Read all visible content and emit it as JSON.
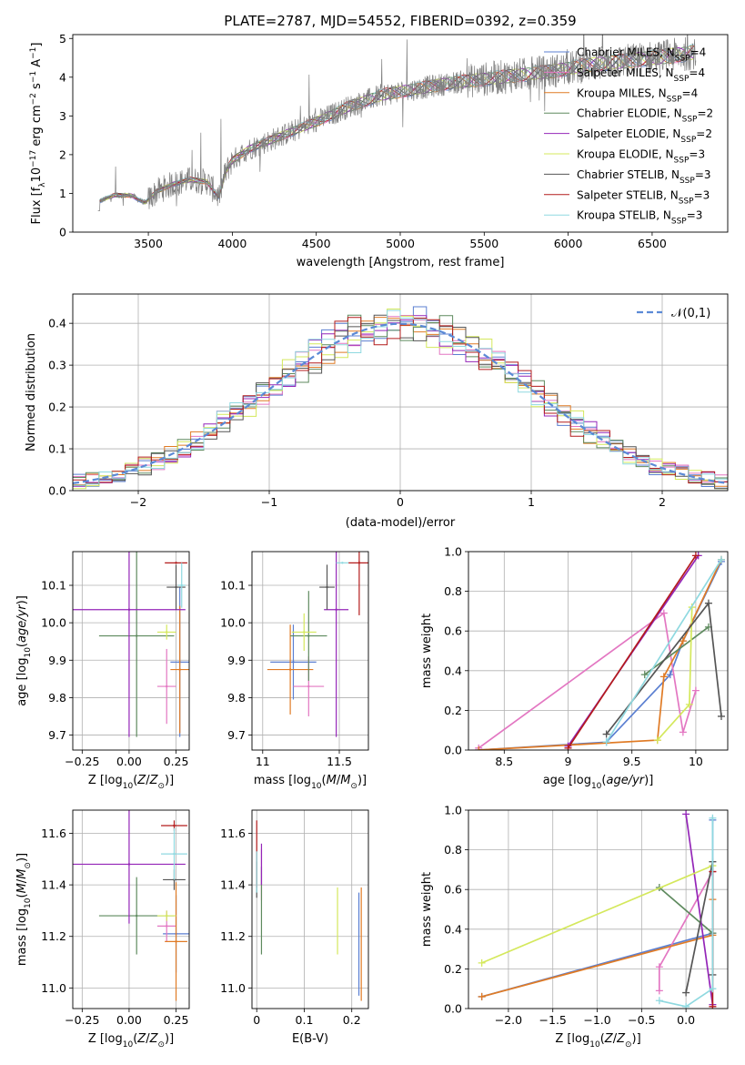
{
  "figure": {
    "title": "PLATE=2787, MJD=54552, FIBERID=0392, z=0.359"
  },
  "colors": {
    "Chabrier MILES": "#5b7fd1",
    "Salpeter MILES": "#e377c2",
    "Kroupa MILES": "#e07b25",
    "Chabrier ELODIE": "#5e8a5e",
    "Salpeter ELODIE": "#9426b8",
    "Kroupa ELODIE": "#d4e85c",
    "Chabrier STELIB": "#555555",
    "Salpeter STELIB": "#b41c1c",
    "Kroupa STELIB": "#8fd9e0",
    "data": "#808080",
    "normal": "#5b8ad6"
  },
  "chart_data": [
    {
      "id": "spectrum",
      "type": "line",
      "title": "PLATE=2787, MJD=54552, FIBERID=0392, z=0.359",
      "xlabel": "wavelength [Angstrom, rest frame]",
      "ylabel": "Flux [f_λ 10^-17 erg cm^-2 s^-1 A^-1]",
      "xlim": [
        3050,
        6950
      ],
      "ylim": [
        0,
        5.1
      ],
      "xticks": [
        3500,
        4000,
        4500,
        5000,
        5500,
        6000,
        6500
      ],
      "yticks": [
        0,
        1,
        2,
        3,
        4,
        5
      ],
      "grid": false,
      "legend": "top-right",
      "legend_entries": [
        {
          "model": "Chabrier MILES",
          "nssp": "4"
        },
        {
          "model": "Salpeter MILES",
          "nssp": "4"
        },
        {
          "model": "Kroupa MILES",
          "nssp": "4"
        },
        {
          "model": "Chabrier ELODIE",
          "nssp": "2"
        },
        {
          "model": "Salpeter ELODIE",
          "nssp": "2"
        },
        {
          "model": "Kroupa ELODIE",
          "nssp": "3"
        },
        {
          "model": "Chabrier STELIB",
          "nssp": "3"
        },
        {
          "model": "Salpeter STELIB",
          "nssp": "3"
        },
        {
          "model": "Kroupa STELIB",
          "nssp": "3"
        }
      ],
      "continuum": {
        "x": [
          3200,
          3210,
          3300,
          3400,
          3480,
          3550,
          3650,
          3750,
          3850,
          3920,
          3960,
          4000,
          4100,
          4300,
          4500,
          4700,
          4900,
          5100,
          5300,
          5500,
          5700,
          5900,
          6100,
          6300,
          6500,
          6700,
          6750
        ],
        "y": [
          0.55,
          0.8,
          0.95,
          0.95,
          0.75,
          1.05,
          1.25,
          1.35,
          1.3,
          0.9,
          1.55,
          1.85,
          2.15,
          2.5,
          2.85,
          3.25,
          3.55,
          3.7,
          3.85,
          3.95,
          4.05,
          4.15,
          4.3,
          4.4,
          4.5,
          4.6,
          4.65
        ]
      }
    },
    {
      "id": "residuals",
      "type": "step",
      "xlabel": "(data-model)/error",
      "ylabel": "Normed distribution",
      "xlim": [
        -2.5,
        2.5
      ],
      "ylim": [
        0,
        0.47
      ],
      "xticks": [
        -2,
        -1,
        0,
        1,
        2
      ],
      "xtick_labels": [
        "−2",
        "−1",
        "0",
        "1",
        "2"
      ],
      "yticks": [
        0.0,
        0.1,
        0.2,
        0.3,
        0.4
      ],
      "grid": true,
      "legend": "top-right",
      "legend_label": "𝒩(0,1)"
    },
    {
      "id": "age_vs_Z",
      "type": "errorbar",
      "xlabel": "Z [log10(Z/Z⊙)]",
      "ylabel": "age [log10(age/yr)]",
      "xlim": [
        -0.3,
        0.32
      ],
      "ylim": [
        9.66,
        10.19
      ],
      "xticks": [
        -0.25,
        0.0,
        0.25
      ],
      "xtick_labels": [
        "−0.25",
        "0.00",
        "0.25"
      ],
      "yticks": [
        9.7,
        9.8,
        9.9,
        10.0,
        10.1
      ],
      "grid": true,
      "points": [
        {
          "model": "Chabrier MILES",
          "x": 0.27,
          "y": 9.895,
          "xerr": 0.05,
          "yerr": 0.2
        },
        {
          "model": "Salpeter MILES",
          "x": 0.2,
          "y": 9.83,
          "xerr": 0.05,
          "yerr": 0.1
        },
        {
          "model": "Kroupa MILES",
          "x": 0.27,
          "y": 9.875,
          "xerr": 0.05,
          "yerr": 0.17
        },
        {
          "model": "Chabrier ELODIE",
          "x": 0.04,
          "y": 9.965,
          "xerr": 0.2,
          "yerr": 0.27
        },
        {
          "model": "Salpeter ELODIE",
          "x": 0.0,
          "y": 10.035,
          "xerr": 0.3,
          "yerr": 0.34
        },
        {
          "model": "Kroupa ELODIE",
          "x": 0.2,
          "y": 9.975,
          "xerr": 0.05,
          "yerr": 0.02
        },
        {
          "model": "Chabrier STELIB",
          "x": 0.25,
          "y": 10.095,
          "xerr": 0.05,
          "yerr": 0.06
        },
        {
          "model": "Salpeter STELIB",
          "x": 0.25,
          "y": 10.16,
          "xerr": 0.06,
          "yerr": 0.0
        },
        {
          "model": "Kroupa STELIB",
          "x": 0.28,
          "y": 10.1,
          "xerr": 0.02,
          "yerr": 0.06
        }
      ]
    },
    {
      "id": "age_vs_mass",
      "type": "errorbar",
      "xlabel": "mass [log10(M/M⊙)]",
      "ylabel": "",
      "xlim": [
        10.93,
        11.69
      ],
      "ylim": [
        9.66,
        10.19
      ],
      "xticks": [
        11.0,
        11.5
      ],
      "yticks": [
        9.7,
        9.8,
        9.9,
        10.0,
        10.1
      ],
      "grid": true,
      "points": [
        {
          "model": "Chabrier MILES",
          "x": 11.2,
          "y": 9.895,
          "xerr": 0.15,
          "yerr": 0.1
        },
        {
          "model": "Salpeter MILES",
          "x": 11.3,
          "y": 9.83,
          "xerr": 0.1,
          "yerr": 0.08
        },
        {
          "model": "Kroupa MILES",
          "x": 11.18,
          "y": 9.875,
          "xerr": 0.15,
          "yerr": 0.12
        },
        {
          "model": "Chabrier ELODIE",
          "x": 11.3,
          "y": 9.965,
          "xerr": 0.12,
          "yerr": 0.12
        },
        {
          "model": "Salpeter ELODIE",
          "x": 11.48,
          "y": 10.035,
          "xerr": 0.08,
          "yerr": 0.34
        },
        {
          "model": "Kroupa ELODIE",
          "x": 11.27,
          "y": 9.975,
          "xerr": 0.08,
          "yerr": 0.05
        },
        {
          "model": "Chabrier STELIB",
          "x": 11.42,
          "y": 10.095,
          "xerr": 0.05,
          "yerr": 0.06
        },
        {
          "model": "Salpeter STELIB",
          "x": 11.63,
          "y": 10.16,
          "xerr": 0.07,
          "yerr": 0.14
        },
        {
          "model": "Kroupa STELIB",
          "x": 11.52,
          "y": 10.16,
          "xerr": 0.04,
          "yerr": 0.0
        }
      ]
    },
    {
      "id": "weight_vs_age",
      "type": "line",
      "xlabel": "age [log10(age/yr)]",
      "ylabel": "mass weight",
      "xlim": [
        8.22,
        10.25
      ],
      "ylim": [
        0,
        1
      ],
      "xticks": [
        8.5,
        9.0,
        9.5,
        10.0
      ],
      "yticks": [
        0.0,
        0.2,
        0.4,
        0.6,
        0.8,
        1.0
      ],
      "grid": true,
      "series": [
        {
          "name": "Chabrier MILES",
          "x": [
            8.3,
            9.3,
            9.8,
            9.9,
            10.2
          ],
          "y": [
            0.0,
            0.04,
            0.38,
            0.55,
            0.95
          ]
        },
        {
          "name": "Salpeter MILES",
          "x": [
            8.3,
            9.75,
            9.9,
            10.0
          ],
          "y": [
            0.01,
            0.69,
            0.09,
            0.3
          ]
        },
        {
          "name": "Kroupa MILES",
          "x": [
            8.3,
            9.7,
            9.75,
            9.9,
            10.2
          ],
          "y": [
            0.0,
            0.05,
            0.37,
            0.55,
            0.96
          ]
        },
        {
          "name": "Chabrier ELODIE",
          "x": [
            9.6,
            10.1
          ],
          "y": [
            0.38,
            0.62
          ]
        },
        {
          "name": "Salpeter ELODIE",
          "x": [
            9.0,
            10.02
          ],
          "y": [
            0.02,
            0.98
          ]
        },
        {
          "name": "Kroupa ELODIE",
          "x": [
            9.7,
            9.95,
            9.97
          ],
          "y": [
            0.05,
            0.23,
            0.72
          ]
        },
        {
          "name": "Chabrier STELIB",
          "x": [
            9.3,
            10.1,
            10.2
          ],
          "y": [
            0.08,
            0.74,
            0.17
          ]
        },
        {
          "name": "Salpeter STELIB",
          "x": [
            9.0,
            10.0
          ],
          "y": [
            0.01,
            0.98
          ]
        },
        {
          "name": "Kroupa STELIB",
          "x": [
            9.3,
            10.2
          ],
          "y": [
            0.04,
            0.96
          ]
        }
      ]
    },
    {
      "id": "mass_vs_Z",
      "type": "errorbar",
      "xlabel": "Z [log10(Z/Z⊙)]",
      "ylabel": "mass [log10(M/M⊙)]",
      "xlim": [
        -0.3,
        0.32
      ],
      "ylim": [
        10.92,
        11.69
      ],
      "xticks": [
        -0.25,
        0.0,
        0.25
      ],
      "xtick_labels": [
        "−0.25",
        "0.00",
        "0.25"
      ],
      "yticks": [
        11.0,
        11.2,
        11.4,
        11.6
      ],
      "grid": true,
      "points": [
        {
          "model": "Chabrier MILES",
          "x": 0.25,
          "y": 11.21,
          "xerr": 0.07,
          "yerr": 0.15
        },
        {
          "model": "Salpeter MILES",
          "x": 0.2,
          "y": 11.24,
          "xerr": 0.05,
          "yerr": 0.06
        },
        {
          "model": "Kroupa MILES",
          "x": 0.25,
          "y": 11.18,
          "xerr": 0.06,
          "yerr": 0.23
        },
        {
          "model": "Chabrier ELODIE",
          "x": 0.04,
          "y": 11.28,
          "xerr": 0.2,
          "yerr": 0.15
        },
        {
          "model": "Salpeter ELODIE",
          "x": 0.0,
          "y": 11.48,
          "xerr": 0.3,
          "yerr": 0.23
        },
        {
          "model": "Kroupa ELODIE",
          "x": 0.2,
          "y": 11.28,
          "xerr": 0.05,
          "yerr": 0.02
        },
        {
          "model": "Chabrier STELIB",
          "x": 0.24,
          "y": 11.42,
          "xerr": 0.06,
          "yerr": 0.04
        },
        {
          "model": "Salpeter STELIB",
          "x": 0.24,
          "y": 11.63,
          "xerr": 0.07,
          "yerr": 0.02
        },
        {
          "model": "Kroupa STELIB",
          "x": 0.24,
          "y": 11.52,
          "xerr": 0.07,
          "yerr": 0.1
        }
      ]
    },
    {
      "id": "mass_vs_ebv",
      "type": "errorbar",
      "xlabel": "E(B-V)",
      "ylabel": "",
      "xlim": [
        -0.01,
        0.235
      ],
      "ylim": [
        10.92,
        11.69
      ],
      "xticks": [
        0.0,
        0.1,
        0.2
      ],
      "yticks": [
        11.0,
        11.2,
        11.4,
        11.6
      ],
      "grid": true,
      "points": [
        {
          "model": "Chabrier MILES",
          "x": 0.215,
          "y": 11.17,
          "xerr": 0.0,
          "yerr": 0.2
        },
        {
          "model": "Salpeter MILES",
          "x": 0.01,
          "y": 11.44,
          "xerr": 0.0,
          "yerr": 0.1
        },
        {
          "model": "Kroupa MILES",
          "x": 0.22,
          "y": 11.17,
          "xerr": 0.0,
          "yerr": 0.22
        },
        {
          "model": "Chabrier ELODIE",
          "x": 0.01,
          "y": 11.3,
          "xerr": 0.0,
          "yerr": 0.17
        },
        {
          "model": "Salpeter ELODIE",
          "x": 0.01,
          "y": 11.48,
          "xerr": 0.0,
          "yerr": 0.08
        },
        {
          "model": "Kroupa ELODIE",
          "x": 0.17,
          "y": 11.26,
          "xerr": 0.0,
          "yerr": 0.13
        },
        {
          "model": "Chabrier STELIB",
          "x": 0.0,
          "y": 11.42,
          "xerr": 0.0,
          "yerr": 0.07
        },
        {
          "model": "Salpeter STELIB",
          "x": 0.0,
          "y": 11.52,
          "xerr": 0.0,
          "yerr": 0.13
        },
        {
          "model": "Kroupa STELIB",
          "x": 0.0,
          "y": 11.45,
          "xerr": 0.0,
          "yerr": 0.08
        }
      ]
    },
    {
      "id": "weight_vs_Z",
      "type": "line",
      "xlabel": "Z [log10(Z/Z⊙)]",
      "ylabel": "mass weight",
      "xlim": [
        -2.45,
        0.47
      ],
      "ylim": [
        0,
        1
      ],
      "xticks": [
        -2.0,
        -1.5,
        -1.0,
        -0.5,
        0.0
      ],
      "xtick_labels": [
        "−2.0",
        "−1.5",
        "−1.0",
        "−0.5",
        "0.0"
      ],
      "yticks": [
        0.0,
        0.2,
        0.4,
        0.6,
        0.8,
        1.0
      ],
      "grid": true,
      "series": [
        {
          "name": "Chabrier MILES",
          "x": [
            -2.3,
            0.3,
            0.3
          ],
          "y": [
            0.06,
            0.38,
            0.95
          ]
        },
        {
          "name": "Salpeter MILES",
          "x": [
            -0.3,
            -0.3,
            0.3
          ],
          "y": [
            0.09,
            0.21,
            0.69
          ]
        },
        {
          "name": "Kroupa MILES",
          "x": [
            -2.3,
            0.3,
            0.3
          ],
          "y": [
            0.06,
            0.37,
            0.55
          ]
        },
        {
          "name": "Chabrier ELODIE",
          "x": [
            -0.3,
            0.3
          ],
          "y": [
            0.61,
            0.38
          ]
        },
        {
          "name": "Salpeter ELODIE",
          "x": [
            0.0,
            0.3
          ],
          "y": [
            0.98,
            0.02
          ]
        },
        {
          "name": "Kroupa ELODIE",
          "x": [
            -2.3,
            0.3
          ],
          "y": [
            0.23,
            0.72
          ]
        },
        {
          "name": "Chabrier STELIB",
          "x": [
            0.0,
            0.3,
            0.3
          ],
          "y": [
            0.08,
            0.74,
            0.17
          ]
        },
        {
          "name": "Salpeter STELIB",
          "x": [
            0.3,
            0.3
          ],
          "y": [
            0.01,
            0.69
          ]
        },
        {
          "name": "Kroupa STELIB",
          "x": [
            -0.3,
            0.0,
            0.3,
            0.3
          ],
          "y": [
            0.04,
            0.01,
            0.1,
            0.96
          ]
        }
      ]
    }
  ]
}
